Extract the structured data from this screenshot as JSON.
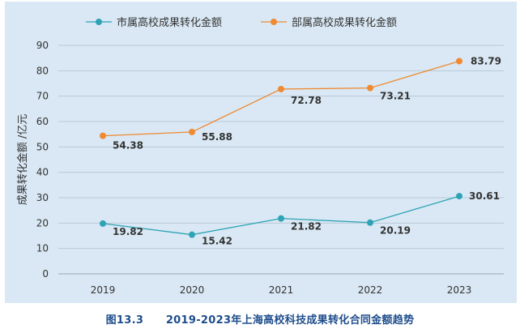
{
  "chart_data": {
    "type": "line",
    "x": [
      "2019",
      "2020",
      "2021",
      "2022",
      "2023"
    ],
    "series": [
      {
        "name": "市属高校成果转化金额",
        "values": [
          19.82,
          15.42,
          21.82,
          20.19,
          30.61
        ],
        "color": "#2ea3b5"
      },
      {
        "name": "部属高校成果转化金额",
        "values": [
          54.38,
          55.88,
          72.78,
          73.21,
          83.79
        ],
        "color": "#ef8a32"
      }
    ],
    "ylabel": "成果转化金额 /亿元",
    "ylim": [
      0,
      90
    ],
    "yticks": [
      0,
      10,
      20,
      30,
      40,
      50,
      60,
      70,
      80,
      90
    ],
    "grid": true,
    "legend": "top"
  },
  "caption": {
    "number": "图13.3",
    "title": "2019-2023年上海高校科技成果转化合同金额趋势"
  }
}
